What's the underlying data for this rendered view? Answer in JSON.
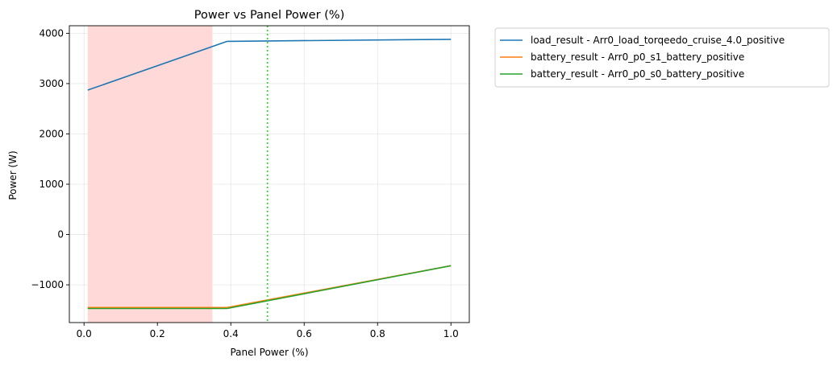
{
  "chart_data": {
    "type": "line",
    "title": "Power vs Panel Power (%)",
    "xlabel": "Panel Power (%)",
    "ylabel": "Power (W)",
    "xlim": [
      -0.04,
      1.05
    ],
    "ylim": [
      -1750,
      4150
    ],
    "x_ticks": [
      0.0,
      0.2,
      0.4,
      0.6,
      0.8,
      1.0
    ],
    "x_tick_labels": [
      "0.0",
      "0.2",
      "0.4",
      "0.6",
      "0.8",
      "1.0"
    ],
    "y_ticks": [
      -1000,
      0,
      1000,
      2000,
      3000,
      4000
    ],
    "y_tick_labels": [
      "−1000",
      "0",
      "1000",
      "2000",
      "3000",
      "4000"
    ],
    "grid": true,
    "legend_placement": "outside-upper-right",
    "shaded_region": {
      "x_start": 0.01,
      "x_end": 0.35,
      "color": "#ffd8d8"
    },
    "vertical_line": {
      "x": 0.5,
      "color": "#22dd22",
      "style": "dotted"
    },
    "series": [
      {
        "name": "load_result - Arr0_load_torqeedo_cruise_4.0_positive",
        "color": "#1f77b4",
        "x": [
          0.01,
          0.39,
          1.0
        ],
        "y": [
          2870,
          3840,
          3880
        ]
      },
      {
        "name": "battery_result - Arr0_p0_s1_battery_positive",
        "color": "#ff7f0e",
        "x": [
          0.01,
          0.39,
          1.0
        ],
        "y": [
          -1450,
          -1450,
          -620
        ]
      },
      {
        "name": "battery_result - Arr0_p0_s0_battery_positive",
        "color": "#2ca02c",
        "x": [
          0.01,
          0.39,
          1.0
        ],
        "y": [
          -1470,
          -1470,
          -620
        ]
      }
    ]
  }
}
